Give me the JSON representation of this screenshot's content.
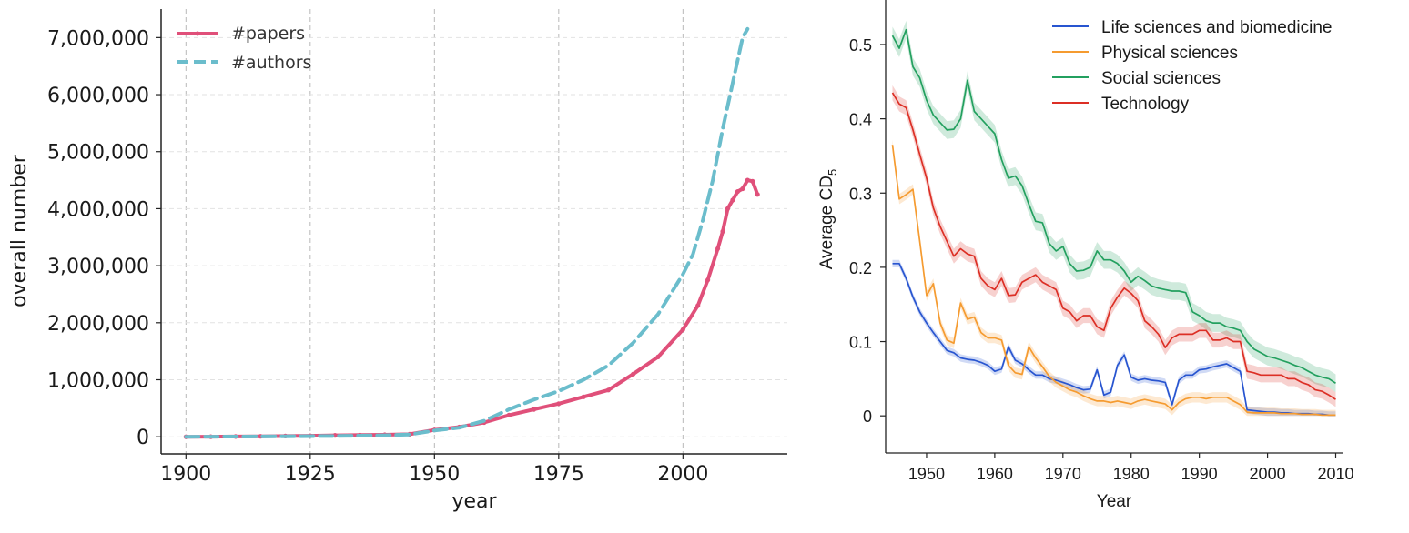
{
  "chart_data": [
    {
      "type": "line",
      "xlabel": "year",
      "ylabel": "overall number",
      "xlim": [
        1895,
        2021
      ],
      "ylim": [
        -300000,
        7500000
      ],
      "xticks": [
        "1900",
        "1925",
        "1950",
        "1975",
        "2000"
      ],
      "xtick_values": [
        1900,
        1925,
        1950,
        1975,
        2000
      ],
      "yticks": [
        "0",
        "1,000,000",
        "2,000,000",
        "3,000,000",
        "4,000,000",
        "5,000,000",
        "6,000,000",
        "7,000,000"
      ],
      "ytick_values": [
        0,
        1000000,
        2000000,
        3000000,
        4000000,
        5000000,
        6000000,
        7000000
      ],
      "grid": true,
      "legend_position": "top-left",
      "series": [
        {
          "name": "#papers",
          "color": "#e0507a",
          "style": "solid-with-markers",
          "x": [
            1900,
            1905,
            1910,
            1915,
            1920,
            1925,
            1930,
            1935,
            1940,
            1945,
            1950,
            1955,
            1960,
            1965,
            1970,
            1975,
            1980,
            1985,
            1990,
            1995,
            2000,
            2003,
            2005,
            2007,
            2008,
            2009,
            2010,
            2011,
            2012,
            2013,
            2014,
            2015
          ],
          "y": [
            0,
            2000,
            5000,
            8000,
            12000,
            18000,
            25000,
            30000,
            35000,
            45000,
            120000,
            170000,
            250000,
            380000,
            480000,
            580000,
            700000,
            820000,
            1100000,
            1400000,
            1880000,
            2300000,
            2750000,
            3300000,
            3600000,
            4000000,
            4150000,
            4300000,
            4350000,
            4500000,
            4480000,
            4250000
          ]
        },
        {
          "name": "#authors",
          "color": "#6bbdcc",
          "style": "dashed",
          "x": [
            1900,
            1910,
            1920,
            1930,
            1940,
            1945,
            1950,
            1955,
            1960,
            1965,
            1970,
            1975,
            1980,
            1985,
            1990,
            1995,
            2000,
            2002,
            2004,
            2006,
            2008,
            2010,
            2012,
            2013
          ],
          "y": [
            0,
            3000,
            8000,
            15000,
            25000,
            40000,
            110000,
            160000,
            280000,
            480000,
            650000,
            800000,
            1000000,
            1250000,
            1650000,
            2150000,
            2850000,
            3200000,
            3800000,
            4500000,
            5400000,
            6200000,
            7000000,
            7150000
          ]
        }
      ]
    },
    {
      "type": "line",
      "xlabel": "Year",
      "ylabel_main": "Average CD",
      "ylabel_sub": "5",
      "xlim": [
        1944,
        2011
      ],
      "ylim": [
        -0.05,
        0.56
      ],
      "xticks": [
        "1950",
        "1960",
        "1970",
        "1980",
        "1990",
        "2000",
        "2010"
      ],
      "xtick_values": [
        1950,
        1960,
        1970,
        1980,
        1990,
        2000,
        2010
      ],
      "yticks": [
        "0",
        "0.1",
        "0.2",
        "0.3",
        "0.4",
        "0.5"
      ],
      "ytick_values": [
        0,
        0.1,
        0.2,
        0.3,
        0.4,
        0.5
      ],
      "grid": false,
      "legend_position": "top-right",
      "series": [
        {
          "name": "Life sciences and biomedicine",
          "color": "#2855d0",
          "band": 0.005,
          "x": [
            1945,
            1946,
            1947,
            1948,
            1949,
            1950,
            1951,
            1952,
            1953,
            1954,
            1955,
            1956,
            1957,
            1958,
            1959,
            1960,
            1961,
            1962,
            1963,
            1964,
            1965,
            1966,
            1967,
            1968,
            1969,
            1970,
            1971,
            1972,
            1973,
            1974,
            1975,
            1976,
            1977,
            1978,
            1979,
            1980,
            1981,
            1982,
            1983,
            1984,
            1985,
            1986,
            1987,
            1988,
            1989,
            1990,
            1991,
            1992,
            1993,
            1994,
            1995,
            1996,
            1997,
            1998,
            1999,
            2000,
            2001,
            2002,
            2003,
            2004,
            2005,
            2006,
            2007,
            2008,
            2009,
            2010
          ],
          "y": [
            0.205,
            0.205,
            0.185,
            0.16,
            0.14,
            0.125,
            0.112,
            0.1,
            0.088,
            0.085,
            0.078,
            0.076,
            0.075,
            0.072,
            0.068,
            0.06,
            0.063,
            0.093,
            0.075,
            0.07,
            0.062,
            0.055,
            0.055,
            0.05,
            0.048,
            0.045,
            0.042,
            0.038,
            0.035,
            0.036,
            0.062,
            0.028,
            0.032,
            0.068,
            0.082,
            0.052,
            0.048,
            0.05,
            0.048,
            0.047,
            0.045,
            0.015,
            0.048,
            0.055,
            0.055,
            0.062,
            0.063,
            0.066,
            0.068,
            0.07,
            0.065,
            0.06,
            0.008,
            0.007,
            0.006,
            0.005,
            0.005,
            0.004,
            0.004,
            0.003,
            0.003,
            0.003,
            0.002,
            0.002,
            0.001,
            0.001
          ]
        },
        {
          "name": "Physical sciences",
          "color": "#f59b30",
          "band": 0.007,
          "x": [
            1945,
            1946,
            1947,
            1948,
            1949,
            1950,
            1951,
            1952,
            1953,
            1954,
            1955,
            1956,
            1957,
            1958,
            1959,
            1960,
            1961,
            1962,
            1963,
            1964,
            1965,
            1966,
            1967,
            1968,
            1969,
            1970,
            1971,
            1972,
            1973,
            1974,
            1975,
            1976,
            1977,
            1978,
            1979,
            1980,
            1981,
            1982,
            1983,
            1984,
            1985,
            1986,
            1987,
            1988,
            1989,
            1990,
            1991,
            1992,
            1993,
            1994,
            1995,
            1996,
            1997,
            1998,
            1999,
            2000,
            2001,
            2002,
            2003,
            2004,
            2005,
            2006,
            2007,
            2008,
            2009,
            2010
          ],
          "y": [
            0.365,
            0.292,
            0.298,
            0.305,
            0.235,
            0.162,
            0.178,
            0.125,
            0.102,
            0.098,
            0.152,
            0.13,
            0.133,
            0.112,
            0.105,
            0.105,
            0.102,
            0.068,
            0.058,
            0.056,
            0.093,
            0.078,
            0.066,
            0.053,
            0.045,
            0.04,
            0.035,
            0.032,
            0.027,
            0.023,
            0.02,
            0.02,
            0.018,
            0.02,
            0.018,
            0.016,
            0.02,
            0.022,
            0.02,
            0.018,
            0.016,
            0.008,
            0.018,
            0.023,
            0.025,
            0.025,
            0.023,
            0.025,
            0.025,
            0.025,
            0.02,
            0.015,
            0.005,
            0.004,
            0.004,
            0.004,
            0.004,
            0.003,
            0.003,
            0.003,
            0.002,
            0.002,
            0.002,
            0.001,
            0.001,
            0.001
          ]
        },
        {
          "name": "Social sciences",
          "color": "#23a05f",
          "band": 0.012,
          "x": [
            1945,
            1946,
            1947,
            1948,
            1949,
            1950,
            1951,
            1952,
            1953,
            1954,
            1955,
            1956,
            1957,
            1958,
            1959,
            1960,
            1961,
            1962,
            1963,
            1964,
            1965,
            1966,
            1967,
            1968,
            1969,
            1970,
            1971,
            1972,
            1973,
            1974,
            1975,
            1976,
            1977,
            1978,
            1979,
            1980,
            1981,
            1982,
            1983,
            1984,
            1985,
            1986,
            1987,
            1988,
            1989,
            1990,
            1991,
            1992,
            1993,
            1994,
            1995,
            1996,
            1997,
            1998,
            1999,
            2000,
            2001,
            2002,
            2003,
            2004,
            2005,
            2006,
            2007,
            2008,
            2009,
            2010
          ],
          "y": [
            0.512,
            0.495,
            0.52,
            0.47,
            0.455,
            0.425,
            0.405,
            0.395,
            0.385,
            0.386,
            0.4,
            0.452,
            0.41,
            0.4,
            0.39,
            0.38,
            0.345,
            0.32,
            0.323,
            0.31,
            0.285,
            0.262,
            0.26,
            0.232,
            0.222,
            0.228,
            0.205,
            0.195,
            0.196,
            0.2,
            0.222,
            0.21,
            0.21,
            0.205,
            0.195,
            0.18,
            0.188,
            0.182,
            0.175,
            0.172,
            0.17,
            0.168,
            0.168,
            0.166,
            0.14,
            0.135,
            0.128,
            0.125,
            0.125,
            0.12,
            0.118,
            0.115,
            0.1,
            0.09,
            0.085,
            0.08,
            0.078,
            0.075,
            0.072,
            0.068,
            0.065,
            0.06,
            0.055,
            0.052,
            0.05,
            0.044
          ]
        },
        {
          "name": "Technology",
          "color": "#dc2f25",
          "band": 0.01,
          "x": [
            1945,
            1946,
            1947,
            1948,
            1949,
            1950,
            1951,
            1952,
            1953,
            1954,
            1955,
            1956,
            1957,
            1958,
            1959,
            1960,
            1961,
            1962,
            1963,
            1964,
            1965,
            1966,
            1967,
            1968,
            1969,
            1970,
            1971,
            1972,
            1973,
            1974,
            1975,
            1976,
            1977,
            1978,
            1979,
            1980,
            1981,
            1982,
            1983,
            1984,
            1985,
            1986,
            1987,
            1988,
            1989,
            1990,
            1991,
            1992,
            1993,
            1994,
            1995,
            1996,
            1997,
            1998,
            1999,
            2000,
            2001,
            2002,
            2003,
            2004,
            2005,
            2006,
            2007,
            2008,
            2009,
            2010
          ],
          "y": [
            0.435,
            0.42,
            0.415,
            0.385,
            0.352,
            0.32,
            0.28,
            0.255,
            0.235,
            0.215,
            0.225,
            0.218,
            0.215,
            0.185,
            0.175,
            0.17,
            0.185,
            0.162,
            0.163,
            0.18,
            0.185,
            0.19,
            0.18,
            0.175,
            0.17,
            0.145,
            0.14,
            0.128,
            0.135,
            0.135,
            0.12,
            0.115,
            0.145,
            0.16,
            0.172,
            0.165,
            0.155,
            0.128,
            0.12,
            0.11,
            0.092,
            0.105,
            0.11,
            0.11,
            0.11,
            0.115,
            0.115,
            0.102,
            0.102,
            0.105,
            0.1,
            0.1,
            0.06,
            0.058,
            0.055,
            0.055,
            0.055,
            0.055,
            0.05,
            0.05,
            0.045,
            0.042,
            0.035,
            0.033,
            0.028,
            0.022
          ]
        }
      ]
    }
  ]
}
